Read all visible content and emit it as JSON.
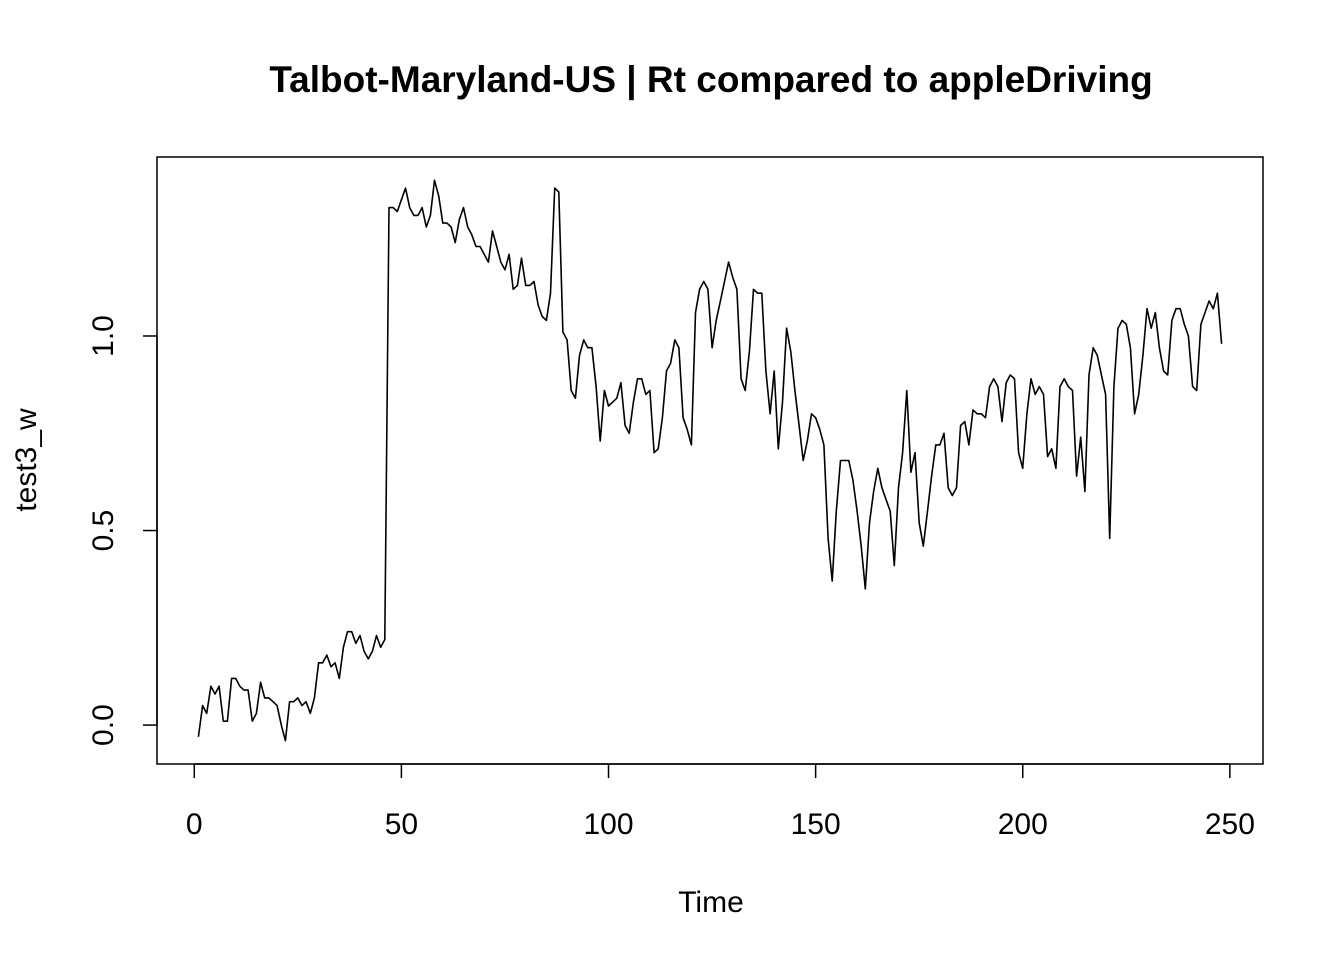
{
  "chart_data": {
    "type": "line",
    "title": "Talbot-Maryland-US | Rt compared to appleDriving",
    "xlabel": "Time",
    "ylabel": "test3_w",
    "xlim": [
      -9,
      258
    ],
    "ylim": [
      -0.1,
      1.46
    ],
    "x_ticks": [
      0,
      50,
      100,
      150,
      200,
      250
    ],
    "x_tick_labels": [
      "0",
      "50",
      "100",
      "150",
      "200",
      "250"
    ],
    "y_ticks": [
      0.0,
      0.5,
      1.0
    ],
    "y_tick_labels": [
      "0.0",
      "0.5",
      "1.0"
    ],
    "grid": false,
    "legend": "none",
    "line_color": "#000000",
    "series": [
      {
        "x_start": 1,
        "x_step": 1,
        "values": [
          -0.03,
          0.05,
          0.03,
          0.1,
          0.08,
          0.1,
          0.01,
          0.01,
          0.12,
          0.12,
          0.1,
          0.09,
          0.09,
          0.01,
          0.03,
          0.11,
          0.07,
          0.07,
          0.06,
          0.05,
          0.0,
          -0.04,
          0.06,
          0.06,
          0.07,
          0.05,
          0.06,
          0.03,
          0.07,
          0.16,
          0.16,
          0.18,
          0.15,
          0.16,
          0.12,
          0.2,
          0.24,
          0.24,
          0.21,
          0.23,
          0.19,
          0.17,
          0.19,
          0.23,
          0.2,
          0.22,
          1.33,
          1.33,
          1.32,
          1.35,
          1.38,
          1.33,
          1.31,
          1.31,
          1.33,
          1.28,
          1.31,
          1.4,
          1.36,
          1.29,
          1.29,
          1.28,
          1.24,
          1.3,
          1.33,
          1.28,
          1.26,
          1.23,
          1.23,
          1.21,
          1.19,
          1.27,
          1.23,
          1.19,
          1.17,
          1.21,
          1.12,
          1.13,
          1.2,
          1.13,
          1.13,
          1.14,
          1.08,
          1.05,
          1.04,
          1.11,
          1.38,
          1.37,
          1.01,
          0.99,
          0.86,
          0.84,
          0.95,
          0.99,
          0.97,
          0.97,
          0.87,
          0.73,
          0.86,
          0.82,
          0.83,
          0.84,
          0.88,
          0.77,
          0.75,
          0.83,
          0.89,
          0.89,
          0.85,
          0.86,
          0.7,
          0.71,
          0.79,
          0.91,
          0.93,
          0.99,
          0.97,
          0.79,
          0.76,
          0.72,
          1.06,
          1.12,
          1.14,
          1.12,
          0.97,
          1.04,
          1.09,
          1.14,
          1.19,
          1.15,
          1.12,
          0.89,
          0.86,
          0.96,
          1.12,
          1.11,
          1.11,
          0.91,
          0.8,
          0.91,
          0.71,
          0.83,
          1.02,
          0.96,
          0.86,
          0.77,
          0.68,
          0.73,
          0.8,
          0.79,
          0.76,
          0.72,
          0.48,
          0.37,
          0.55,
          0.68,
          0.68,
          0.68,
          0.63,
          0.55,
          0.46,
          0.35,
          0.52,
          0.6,
          0.66,
          0.61,
          0.58,
          0.55,
          0.41,
          0.61,
          0.7,
          0.86,
          0.65,
          0.7,
          0.52,
          0.46,
          0.55,
          0.64,
          0.72,
          0.72,
          0.75,
          0.61,
          0.59,
          0.61,
          0.77,
          0.78,
          0.72,
          0.81,
          0.8,
          0.8,
          0.79,
          0.87,
          0.89,
          0.87,
          0.78,
          0.88,
          0.9,
          0.89,
          0.7,
          0.66,
          0.8,
          0.89,
          0.85,
          0.87,
          0.85,
          0.69,
          0.71,
          0.66,
          0.87,
          0.89,
          0.87,
          0.86,
          0.64,
          0.74,
          0.6,
          0.9,
          0.97,
          0.95,
          0.9,
          0.85,
          0.48,
          0.87,
          1.02,
          1.04,
          1.03,
          0.97,
          0.8,
          0.85,
          0.95,
          1.07,
          1.02,
          1.06,
          0.97,
          0.91,
          0.9,
          1.04,
          1.07,
          1.07,
          1.03,
          1.0,
          0.87,
          0.86,
          1.03,
          1.06,
          1.09,
          1.07,
          1.11,
          0.98
        ]
      }
    ]
  }
}
